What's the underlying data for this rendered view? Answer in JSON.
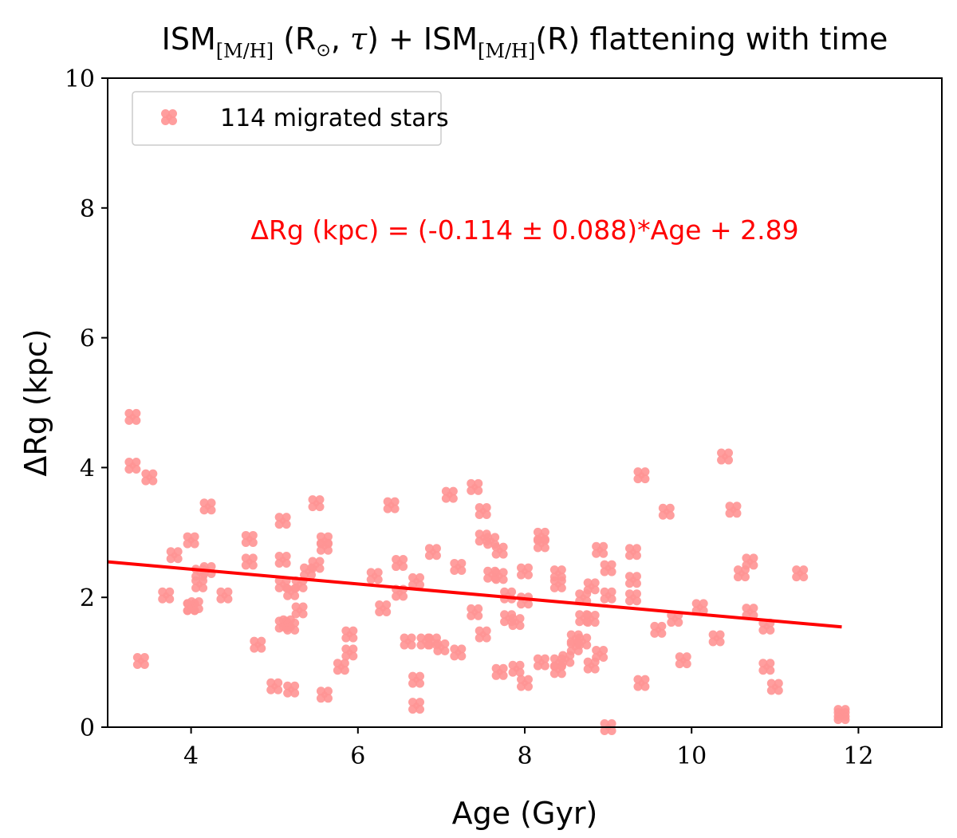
{
  "chart_data": {
    "type": "scatter",
    "title": {
      "part1": "ISM",
      "sub1": "[M/H]",
      "part2": " (R",
      "sun": "⊙",
      "part3": ", ",
      "tau": "τ",
      "part4": ") + ISM",
      "sub2": "[M/H]",
      "part5": "(R) flattening with time"
    },
    "xlabel": "Age (Gyr)",
    "ylabel": "ΔRg (kpc)",
    "xlim": [
      3,
      13
    ],
    "ylim": [
      0,
      10
    ],
    "xticks": [
      4,
      6,
      8,
      10,
      12
    ],
    "yticks": [
      0,
      2,
      4,
      6,
      8,
      10
    ],
    "legend": {
      "label": "114 migrated stars",
      "placement": "top-left"
    },
    "annotation": "ΔRg (kpc) = (-0.114 ± 0.088)*Age + 2.89",
    "marker_color": "#ff9393",
    "line_color": "#ff0000",
    "fit": {
      "slope": -0.114,
      "intercept": 2.89,
      "x_range": [
        3.0,
        11.8
      ]
    },
    "points": [
      [
        3.3,
        4.78
      ],
      [
        3.3,
        4.03
      ],
      [
        3.4,
        1.02
      ],
      [
        3.5,
        3.85
      ],
      [
        3.7,
        2.03
      ],
      [
        3.8,
        2.65
      ],
      [
        4.0,
        2.88
      ],
      [
        4.0,
        1.85
      ],
      [
        4.0,
        1.85
      ],
      [
        4.1,
        2.38
      ],
      [
        4.1,
        2.2
      ],
      [
        4.2,
        2.42
      ],
      [
        4.2,
        3.4
      ],
      [
        4.4,
        2.03
      ],
      [
        4.7,
        2.9
      ],
      [
        4.7,
        2.55
      ],
      [
        4.8,
        1.27
      ],
      [
        5.0,
        0.63
      ],
      [
        5.1,
        3.18
      ],
      [
        5.1,
        2.58
      ],
      [
        5.1,
        2.2
      ],
      [
        5.1,
        1.58
      ],
      [
        5.2,
        1.55
      ],
      [
        5.2,
        0.58
      ],
      [
        5.2,
        2.08
      ],
      [
        5.3,
        2.2
      ],
      [
        5.3,
        1.8
      ],
      [
        5.4,
        2.4
      ],
      [
        5.5,
        2.5
      ],
      [
        5.5,
        3.45
      ],
      [
        5.6,
        2.88
      ],
      [
        5.6,
        2.78
      ],
      [
        5.6,
        0.5
      ],
      [
        5.8,
        0.93
      ],
      [
        5.9,
        1.43
      ],
      [
        5.9,
        1.15
      ],
      [
        6.2,
        2.33
      ],
      [
        6.3,
        1.83
      ],
      [
        6.4,
        3.42
      ],
      [
        6.5,
        2.53
      ],
      [
        6.5,
        2.07
      ],
      [
        6.6,
        1.32
      ],
      [
        6.7,
        2.25
      ],
      [
        6.7,
        0.73
      ],
      [
        6.7,
        0.33
      ],
      [
        6.8,
        1.32
      ],
      [
        6.9,
        2.7
      ],
      [
        6.9,
        1.32
      ],
      [
        7.0,
        1.23
      ],
      [
        7.1,
        3.58
      ],
      [
        7.2,
        2.47
      ],
      [
        7.2,
        1.15
      ],
      [
        7.4,
        3.7
      ],
      [
        7.4,
        1.77
      ],
      [
        7.5,
        3.33
      ],
      [
        7.5,
        2.92
      ],
      [
        7.5,
        1.43
      ],
      [
        7.6,
        2.87
      ],
      [
        7.6,
        2.35
      ],
      [
        7.7,
        2.72
      ],
      [
        7.7,
        2.33
      ],
      [
        7.7,
        0.85
      ],
      [
        7.8,
        2.03
      ],
      [
        7.8,
        1.68
      ],
      [
        7.9,
        1.62
      ],
      [
        7.9,
        0.9
      ],
      [
        8.0,
        2.4
      ],
      [
        8.0,
        1.95
      ],
      [
        8.0,
        0.68
      ],
      [
        8.2,
        2.95
      ],
      [
        8.2,
        2.82
      ],
      [
        8.2,
        1.0
      ],
      [
        8.4,
        2.37
      ],
      [
        8.4,
        2.2
      ],
      [
        8.4,
        1.0
      ],
      [
        8.4,
        0.88
      ],
      [
        8.5,
        1.05
      ],
      [
        8.6,
        1.23
      ],
      [
        8.6,
        1.37
      ],
      [
        8.7,
        2.0
      ],
      [
        8.7,
        1.68
      ],
      [
        8.7,
        1.32
      ],
      [
        8.8,
        2.17
      ],
      [
        8.8,
        1.67
      ],
      [
        8.8,
        0.95
      ],
      [
        8.9,
        2.73
      ],
      [
        8.9,
        1.13
      ],
      [
        9.0,
        2.45
      ],
      [
        9.0,
        2.03
      ],
      [
        9.0,
        0.0
      ],
      [
        9.3,
        2.7
      ],
      [
        9.3,
        2.27
      ],
      [
        9.3,
        2.0
      ],
      [
        9.4,
        3.88
      ],
      [
        9.4,
        0.68
      ],
      [
        9.6,
        1.5
      ],
      [
        9.7,
        3.32
      ],
      [
        9.8,
        1.67
      ],
      [
        9.9,
        1.03
      ],
      [
        10.1,
        1.85
      ],
      [
        10.3,
        1.37
      ],
      [
        10.4,
        4.17
      ],
      [
        10.5,
        3.35
      ],
      [
        10.6,
        2.37
      ],
      [
        10.7,
        2.55
      ],
      [
        10.7,
        1.78
      ],
      [
        10.9,
        1.55
      ],
      [
        10.9,
        0.93
      ],
      [
        11.0,
        0.62
      ],
      [
        11.3,
        2.37
      ],
      [
        11.8,
        0.22
      ],
      [
        11.8,
        0.17
      ],
      [
        4.05,
        1.88
      ],
      [
        5.15,
        1.6
      ]
    ]
  }
}
